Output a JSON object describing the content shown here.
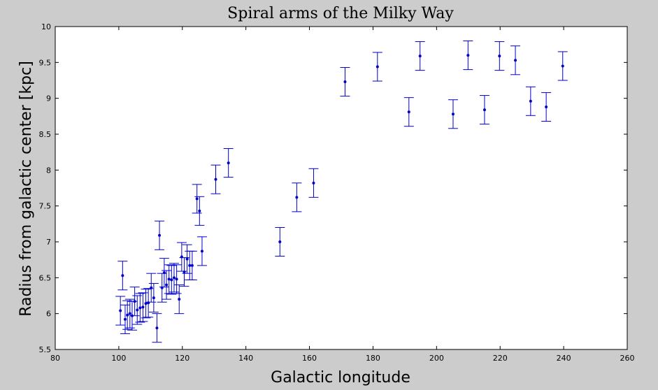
{
  "chart_data": {
    "type": "scatter",
    "title": "Spiral arms of the Milky Way",
    "xlabel": "Galactic longitude",
    "ylabel": "Radius from galactic center [kpc]",
    "xlim": [
      80,
      260
    ],
    "ylim": [
      5.5,
      10
    ],
    "xticks": [
      80,
      100,
      120,
      140,
      160,
      180,
      200,
      220,
      240,
      260
    ],
    "yticks": [
      5.5,
      6,
      6.5,
      7,
      7.5,
      8,
      8.5,
      9,
      9.5,
      10
    ],
    "grid": false,
    "error_bar": 0.2,
    "colors": {
      "marker": "#0000cc",
      "background": "#cccccc",
      "plot_area": "#ffffff"
    },
    "points": [
      {
        "x": 100.5,
        "y": 6.04
      },
      {
        "x": 101.2,
        "y": 6.53
      },
      {
        "x": 102.0,
        "y": 5.92
      },
      {
        "x": 102.7,
        "y": 5.98
      },
      {
        "x": 103.5,
        "y": 6.0
      },
      {
        "x": 104.2,
        "y": 5.97
      },
      {
        "x": 105.0,
        "y": 6.17
      },
      {
        "x": 105.8,
        "y": 6.05
      },
      {
        "x": 106.7,
        "y": 6.08
      },
      {
        "x": 107.6,
        "y": 6.09
      },
      {
        "x": 108.5,
        "y": 6.14
      },
      {
        "x": 109.3,
        "y": 6.15
      },
      {
        "x": 110.2,
        "y": 6.36
      },
      {
        "x": 111.0,
        "y": 6.22
      },
      {
        "x": 112.0,
        "y": 5.8
      },
      {
        "x": 112.8,
        "y": 7.09
      },
      {
        "x": 113.6,
        "y": 6.36
      },
      {
        "x": 114.3,
        "y": 6.57
      },
      {
        "x": 115.0,
        "y": 6.4
      },
      {
        "x": 115.8,
        "y": 6.48
      },
      {
        "x": 116.6,
        "y": 6.47
      },
      {
        "x": 117.4,
        "y": 6.5
      },
      {
        "x": 118.2,
        "y": 6.48
      },
      {
        "x": 119.0,
        "y": 6.2
      },
      {
        "x": 119.8,
        "y": 6.79
      },
      {
        "x": 120.6,
        "y": 6.58
      },
      {
        "x": 121.5,
        "y": 6.76
      },
      {
        "x": 122.3,
        "y": 6.67
      },
      {
        "x": 123.1,
        "y": 6.67
      },
      {
        "x": 124.6,
        "y": 7.6
      },
      {
        "x": 125.4,
        "y": 7.43
      },
      {
        "x": 126.2,
        "y": 6.87
      },
      {
        "x": 130.5,
        "y": 7.87
      },
      {
        "x": 134.5,
        "y": 8.1
      },
      {
        "x": 150.7,
        "y": 7.0
      },
      {
        "x": 156.0,
        "y": 7.62
      },
      {
        "x": 161.3,
        "y": 7.82
      },
      {
        "x": 171.2,
        "y": 9.23
      },
      {
        "x": 181.4,
        "y": 9.44
      },
      {
        "x": 191.3,
        "y": 8.81
      },
      {
        "x": 194.8,
        "y": 9.59
      },
      {
        "x": 205.2,
        "y": 8.78
      },
      {
        "x": 209.9,
        "y": 9.6
      },
      {
        "x": 215.1,
        "y": 8.84
      },
      {
        "x": 219.8,
        "y": 9.59
      },
      {
        "x": 224.8,
        "y": 9.53
      },
      {
        "x": 229.6,
        "y": 8.96
      },
      {
        "x": 234.5,
        "y": 8.88
      },
      {
        "x": 239.7,
        "y": 9.45
      }
    ]
  }
}
